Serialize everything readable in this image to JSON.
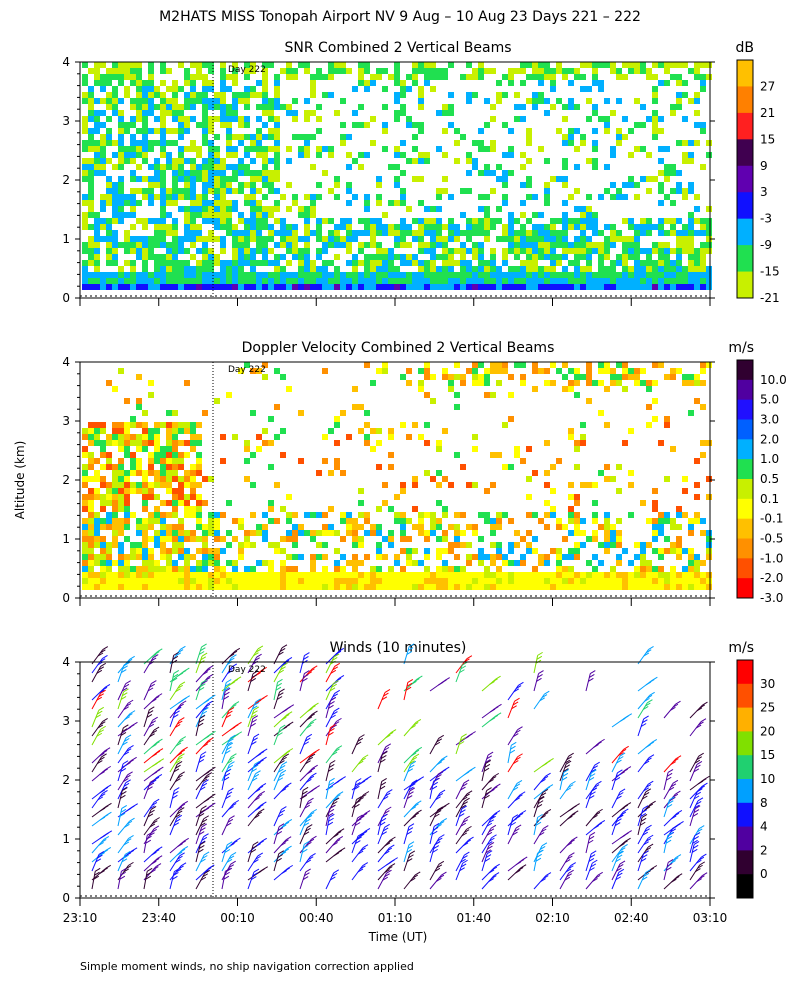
{
  "title": "M2HATS MISS Tonopah Airport NV   9 Aug – 10 Aug 23 Days 221 – 222",
  "footnote": "Simple moment winds, no ship navigation correction applied",
  "ylabel": "Altitude (km)",
  "xlabel": "Time (UT)",
  "day_marker": "Day 222",
  "chart_data": [
    {
      "type": "heatmap",
      "title": "SNR Combined 2 Vertical Beams",
      "unit": "dB",
      "ylim": [
        0,
        4
      ],
      "yticks": [
        "0",
        "1",
        "2",
        "3",
        "4"
      ],
      "colorbar_labels": [
        "27",
        "21",
        "15",
        "9",
        "3",
        "-3",
        "-9",
        "-15",
        "-21"
      ],
      "colors": [
        "#ffc000",
        "#ff8000",
        "#ff2020",
        "#400050",
        "#6000b0",
        "#1010ff",
        "#00b0ff",
        "#20e050",
        "#c8f000"
      ]
    },
    {
      "type": "heatmap",
      "title": "Doppler Velocity Combined 2 Vertical Beams",
      "unit": "m/s",
      "ylim": [
        0,
        4
      ],
      "yticks": [
        "0",
        "1",
        "2",
        "3",
        "4"
      ],
      "colorbar_labels": [
        "10.0",
        "5.0",
        "3.0",
        "2.0",
        "1.0",
        "0.5",
        "0.1",
        "-0.1",
        "-0.5",
        "-1.0",
        "-2.0",
        "-3.0"
      ],
      "colors": [
        "#300030",
        "#5000a0",
        "#2010ff",
        "#0060ff",
        "#00b0ff",
        "#20e050",
        "#c8f000",
        "#ffff00",
        "#ffc000",
        "#ff9000",
        "#ff5000",
        "#ff0000"
      ]
    },
    {
      "type": "scatter",
      "title": "Winds (10 minutes)",
      "unit": "m/s",
      "ylim": [
        0,
        4
      ],
      "yticks": [
        "0",
        "1",
        "2",
        "3",
        "4"
      ],
      "colorbar_labels": [
        "30",
        "25",
        "20",
        "15",
        "10",
        "8",
        "4",
        "2",
        "0"
      ],
      "colors": [
        "#ff0000",
        "#ff5000",
        "#ffb000",
        "#80e000",
        "#20d070",
        "#00a0ff",
        "#1010ff",
        "#5000a0",
        "#300030",
        "#000000"
      ]
    }
  ],
  "xticks": [
    "23:10",
    "23:40",
    "00:10",
    "00:40",
    "01:10",
    "01:40",
    "02:10",
    "02:40",
    "03:10"
  ]
}
